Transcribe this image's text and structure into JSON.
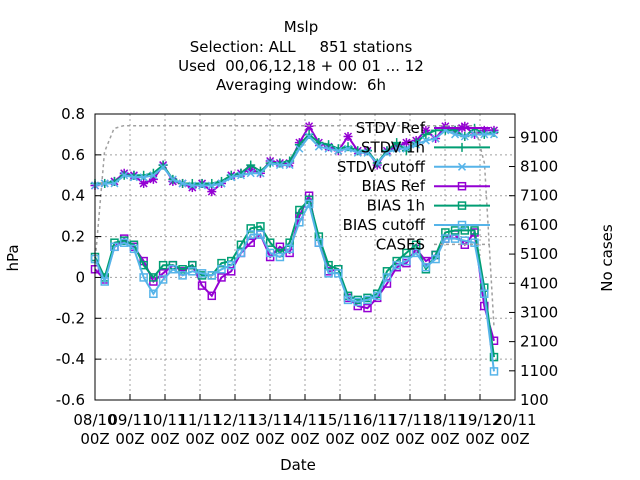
{
  "chart_data": {
    "type": "line",
    "title_lines": [
      "Mslp",
      "Selection: ALL     851 stations",
      "Used  00,06,12,18 + 00 01 ... 12",
      "Averaging window:  6h"
    ],
    "xlabel": "Date",
    "ylabel": "hPa",
    "y2label": "No cases",
    "ylim": [
      -0.6,
      0.8
    ],
    "y2lim": [
      100,
      9900
    ],
    "grid": true,
    "legend_position": "top-right inside",
    "yticks": [
      "0.8",
      "0.6",
      "0.4",
      "0.2",
      "0",
      "-0.2",
      "-0.4",
      "-0.6"
    ],
    "y2ticks": [
      "9100",
      "8100",
      "7100",
      "6100",
      "5100",
      "4100",
      "3100",
      "2100",
      "1100",
      "100"
    ],
    "xticks": [
      {
        "l1": "08/10",
        "l2": "00Z"
      },
      {
        "l1": "09/11",
        "l2": "00Z"
      },
      {
        "l1": "10/11",
        "l2": "00Z"
      },
      {
        "l1": "11/11",
        "l2": "00Z"
      },
      {
        "l1": "12/11",
        "l2": "00Z"
      },
      {
        "l1": "13/11",
        "l2": "00Z"
      },
      {
        "l1": "14/11",
        "l2": "00Z"
      },
      {
        "l1": "15/11",
        "l2": "00Z"
      },
      {
        "l1": "16/11",
        "l2": "00Z"
      },
      {
        "l1": "17/11",
        "l2": "00Z"
      },
      {
        "l1": "18/11",
        "l2": "00Z"
      },
      {
        "l1": "19/12",
        "l2": "00Z"
      },
      {
        "l1": "20/11",
        "l2": "00Z"
      }
    ],
    "series": [
      {
        "name": "STDV Ref",
        "color": "#9400d3",
        "marker": "star",
        "axis": "y",
        "values": [
          0.45,
          0.46,
          0.47,
          0.51,
          0.5,
          0.46,
          0.48,
          0.55,
          0.47,
          0.46,
          0.44,
          0.46,
          0.42,
          0.46,
          0.5,
          0.51,
          0.53,
          0.51,
          0.57,
          0.56,
          0.56,
          0.66,
          0.74,
          0.66,
          0.64,
          0.62,
          0.69,
          0.62,
          0.62,
          0.55,
          0.62,
          0.64,
          0.66,
          0.67,
          0.72,
          0.68,
          0.74,
          0.72,
          0.74,
          0.7,
          0.72,
          0.72
        ]
      },
      {
        "name": "STDV 1h",
        "color": "#009e73",
        "marker": "plus",
        "axis": "y",
        "values": [
          0.46,
          0.46,
          0.47,
          0.5,
          0.5,
          0.5,
          0.51,
          0.55,
          0.48,
          0.46,
          0.46,
          0.46,
          0.46,
          0.47,
          0.5,
          0.51,
          0.55,
          0.52,
          0.56,
          0.56,
          0.57,
          0.65,
          0.7,
          0.66,
          0.65,
          0.63,
          0.64,
          0.62,
          0.62,
          0.56,
          0.62,
          0.66,
          0.62,
          0.66,
          0.7,
          0.72,
          0.72,
          0.72,
          0.69,
          0.73,
          0.7,
          0.71
        ]
      },
      {
        "name": "STDV cutoff",
        "color": "#56b4e9",
        "marker": "x",
        "axis": "y",
        "values": [
          0.45,
          0.46,
          0.46,
          0.5,
          0.49,
          0.49,
          0.5,
          0.54,
          0.48,
          0.46,
          0.45,
          0.45,
          0.45,
          0.46,
          0.49,
          0.5,
          0.51,
          0.51,
          0.56,
          0.55,
          0.55,
          0.63,
          0.69,
          0.64,
          0.63,
          0.62,
          0.63,
          0.61,
          0.61,
          0.56,
          0.61,
          0.63,
          0.63,
          0.65,
          0.67,
          0.68,
          0.72,
          0.7,
          0.69,
          0.7,
          0.7,
          0.7
        ]
      },
      {
        "name": "BIAS Ref",
        "color": "#9400d3",
        "marker": "box",
        "axis": "y",
        "values": [
          0.04,
          -0.01,
          0.15,
          0.19,
          0.15,
          0.08,
          -0.02,
          0.02,
          0.06,
          0.03,
          0.06,
          -0.04,
          -0.09,
          0.0,
          0.03,
          0.12,
          0.17,
          0.21,
          0.1,
          0.15,
          0.12,
          0.3,
          0.4,
          0.17,
          0.03,
          0.04,
          -0.1,
          -0.14,
          -0.15,
          -0.1,
          -0.03,
          0.05,
          0.07,
          0.14,
          0.08,
          0.11,
          0.19,
          0.21,
          0.16,
          0.22,
          -0.14,
          -0.31
        ]
      },
      {
        "name": "BIAS 1h",
        "color": "#009e73",
        "marker": "box",
        "axis": "y",
        "values": [
          0.1,
          0.0,
          0.17,
          0.18,
          0.16,
          0.06,
          0.0,
          0.06,
          0.06,
          0.04,
          0.06,
          0.01,
          0.01,
          0.07,
          0.08,
          0.16,
          0.24,
          0.25,
          0.17,
          0.12,
          0.17,
          0.33,
          0.38,
          0.2,
          0.06,
          0.04,
          -0.09,
          -0.11,
          -0.1,
          -0.08,
          0.03,
          0.08,
          0.12,
          0.16,
          0.04,
          0.11,
          0.22,
          0.23,
          0.23,
          0.23,
          -0.05,
          -0.39
        ]
      },
      {
        "name": "BIAS cutoff",
        "color": "#56b4e9",
        "marker": "box",
        "axis": "y",
        "values": [
          0.09,
          -0.02,
          0.15,
          0.17,
          0.14,
          0.0,
          -0.08,
          -0.01,
          0.04,
          0.01,
          0.03,
          0.02,
          0.01,
          0.04,
          0.06,
          0.12,
          0.21,
          0.21,
          0.12,
          0.1,
          0.14,
          0.27,
          0.36,
          0.17,
          0.02,
          0.02,
          -0.11,
          -0.12,
          -0.11,
          -0.09,
          0.0,
          0.06,
          0.08,
          0.12,
          0.05,
          0.09,
          0.19,
          0.19,
          0.18,
          0.17,
          -0.08,
          -0.46
        ]
      },
      {
        "name": "CASES",
        "color": "#a0a0a0",
        "marker": "none",
        "axis": "y2",
        "dashed": true,
        "values": [
          4800,
          8600,
          9400,
          9500,
          9500,
          9500,
          9500,
          9500,
          9500,
          9500,
          9500,
          9500,
          9500,
          9500,
          9500,
          9500,
          9500,
          9500,
          9500,
          9500,
          9500,
          9500,
          9500,
          9500,
          9500,
          9500,
          9500,
          9500,
          9500,
          9500,
          9500,
          9500,
          9500,
          9500,
          9500,
          9500,
          9500,
          9500,
          9500,
          9500,
          9500,
          8200,
          2600
        ]
      }
    ]
  }
}
